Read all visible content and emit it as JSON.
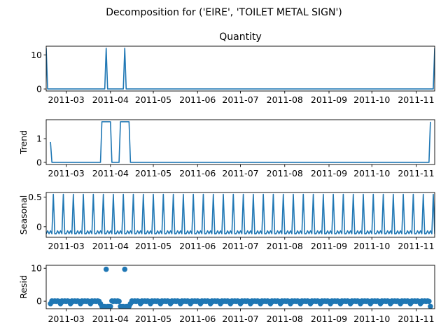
{
  "figure": {
    "suptitle": "Decomposition for ('EIRE', 'TOILET METAL SIGN')",
    "series_color": "#1f77b4",
    "x_tick_labels": [
      "2011-03",
      "2011-04",
      "2011-05",
      "2011-06",
      "2011-07",
      "2011-08",
      "2011-09",
      "2011-10",
      "2011-11"
    ]
  },
  "chart_data": [
    {
      "type": "line",
      "title": "Quantity",
      "ylabel": "",
      "xlim": [
        "2011-02-15",
        "2011-11-14"
      ],
      "ylim": [
        -0.6,
        12.6
      ],
      "yticks": [
        0,
        10
      ],
      "points": [
        {
          "x": "2011-02-15",
          "y": 12
        },
        {
          "x": "2011-02-16",
          "y": 0
        },
        {
          "x": "2011-03-28",
          "y": 0
        },
        {
          "x": "2011-03-29",
          "y": 12
        },
        {
          "x": "2011-03-30",
          "y": 0
        },
        {
          "x": "2011-04-10",
          "y": 0
        },
        {
          "x": "2011-04-11",
          "y": 12
        },
        {
          "x": "2011-04-12",
          "y": 0
        },
        {
          "x": "2011-11-13",
          "y": 0
        },
        {
          "x": "2011-11-14",
          "y": 12
        }
      ]
    },
    {
      "type": "line",
      "title": "",
      "ylabel": "Trend",
      "xlim": [
        "2011-02-15",
        "2011-11-14"
      ],
      "ylim": [
        -0.09,
        1.8
      ],
      "yticks": [
        0,
        1
      ],
      "points": [
        {
          "x": "2011-02-18",
          "y": 0.857
        },
        {
          "x": "2011-02-19",
          "y": 0
        },
        {
          "x": "2011-03-25",
          "y": 0
        },
        {
          "x": "2011-03-26",
          "y": 1.714
        },
        {
          "x": "2011-04-01",
          "y": 1.714
        },
        {
          "x": "2011-04-02",
          "y": 0
        },
        {
          "x": "2011-04-07",
          "y": 0
        },
        {
          "x": "2011-04-08",
          "y": 1.714
        },
        {
          "x": "2011-04-14",
          "y": 1.714
        },
        {
          "x": "2011-04-15",
          "y": 0
        },
        {
          "x": "2011-11-10",
          "y": 0
        },
        {
          "x": "2011-11-11",
          "y": 1.714
        }
      ]
    },
    {
      "type": "line",
      "title": "",
      "ylabel": "Seasonal",
      "xlim": [
        "2011-02-15",
        "2011-11-14"
      ],
      "ylim": [
        -0.18,
        0.58
      ],
      "yticks": [
        0.0,
        0.5
      ],
      "weekly_pattern": {
        "start": "2011-02-15",
        "period_days": 7,
        "values": [
          -0.12,
          -0.07,
          -0.12,
          -0.07,
          -0.12,
          0.55,
          -0.12
        ]
      }
    },
    {
      "type": "scatter",
      "title": "",
      "ylabel": "Resid",
      "xlim": [
        "2011-02-15",
        "2011-11-14"
      ],
      "ylim": [
        -2.3,
        10.9
      ],
      "yticks": [
        0,
        10
      ],
      "baseline": {
        "start": "2011-02-18",
        "end": "2011-11-11",
        "values": [
          -0.78,
          0.07,
          -0.06,
          0.07,
          -0.06,
          0.07,
          -0.06
        ]
      },
      "overrides": [
        {
          "x": "2011-03-26",
          "y": -1.6
        },
        {
          "x": "2011-03-27",
          "y": -1.6
        },
        {
          "x": "2011-03-28",
          "y": -1.6
        },
        {
          "x": "2011-03-29",
          "y": 9.7
        },
        {
          "x": "2011-03-30",
          "y": -1.6
        },
        {
          "x": "2011-03-31",
          "y": -1.6
        },
        {
          "x": "2011-04-01",
          "y": -1.6
        },
        {
          "x": "2011-04-08",
          "y": -1.6
        },
        {
          "x": "2011-04-09",
          "y": -1.6
        },
        {
          "x": "2011-04-10",
          "y": -1.6
        },
        {
          "x": "2011-04-11",
          "y": 9.7
        },
        {
          "x": "2011-04-12",
          "y": -1.6
        },
        {
          "x": "2011-04-13",
          "y": -1.6
        },
        {
          "x": "2011-04-14",
          "y": -1.6
        },
        {
          "x": "2011-11-11",
          "y": -1.6
        }
      ]
    }
  ]
}
